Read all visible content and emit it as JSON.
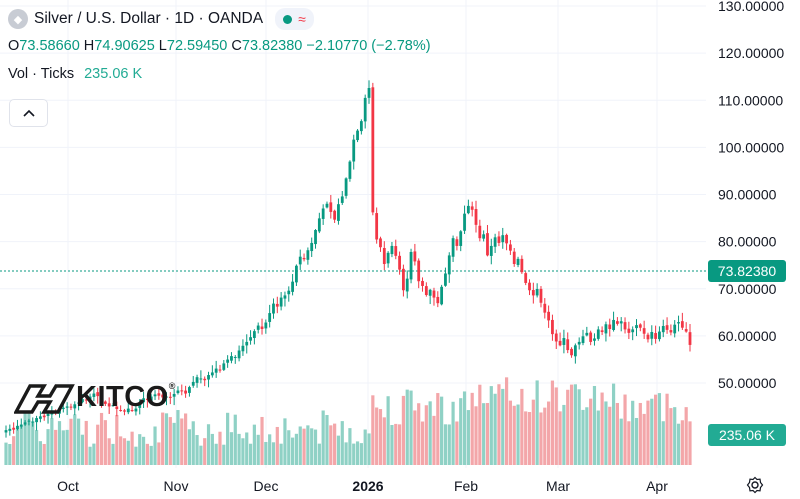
{
  "header": {
    "symbol": "Silver / U.S. Dollar · 1D · OANDA",
    "open_label": "O",
    "open": "73.58660",
    "high_label": "H",
    "high": "74.90625",
    "low_label": "L",
    "low": "72.59450",
    "close_label": "C",
    "close": "73.82380",
    "change": "−2.10770 (−2.78%)"
  },
  "volume": {
    "label": "Vol · Ticks",
    "value": "235.06 K"
  },
  "logo": {
    "text": "KITCO",
    "mark": "®"
  },
  "price_axis": {
    "labels": [
      "130.00000",
      "120.00000",
      "110.00000",
      "100.00000",
      "90.00000",
      "80.00000",
      "70.00000",
      "60.00000",
      "50.00000"
    ],
    "current_price": "73.82380",
    "current_volume": "235.06 K"
  },
  "time_axis": {
    "labels": [
      "Oct",
      "Nov",
      "Dec",
      "2026",
      "Feb",
      "Mar",
      "Apr"
    ]
  },
  "colors": {
    "up": "#089981",
    "down": "#f23645",
    "vol_up": "#8fd1c5",
    "vol_down": "#f3a6a9",
    "price_tag": "#089981",
    "vol_tag": "#22ab94"
  },
  "chart_data": {
    "type": "candlestick",
    "title": "Silver / U.S. Dollar · 1D · OANDA",
    "ylim": [
      45,
      133
    ],
    "x_ticks": [
      "Oct",
      "Nov",
      "Dec",
      "2026",
      "Feb",
      "Mar",
      "Apr"
    ],
    "y_ticks": [
      50,
      60,
      70,
      80,
      90,
      100,
      110,
      120,
      130
    ],
    "last_price": 73.8238,
    "volume_last": "235.06 K"
  }
}
